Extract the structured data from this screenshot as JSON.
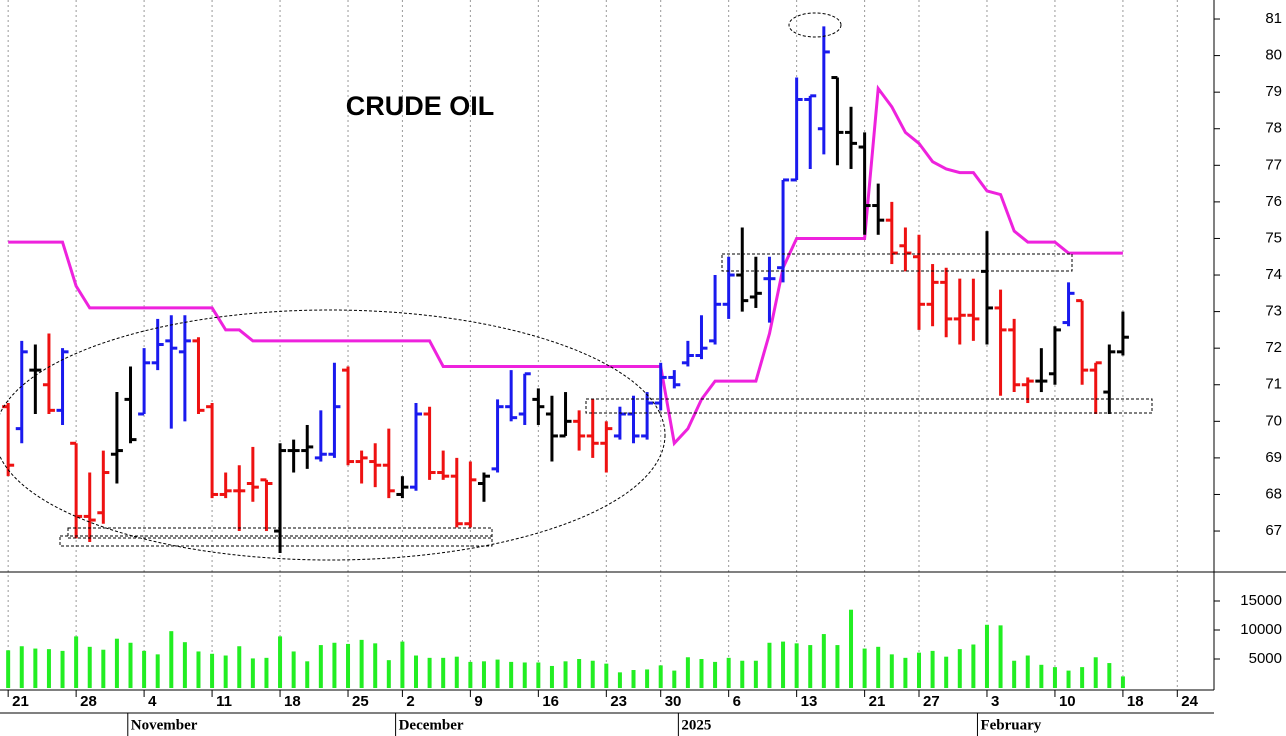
{
  "chart_data": {
    "type": "ohlc",
    "title": "CRUDE OIL",
    "x": [
      0,
      1,
      2,
      3,
      4,
      5,
      6,
      7,
      8,
      9,
      10,
      11,
      12,
      13,
      14,
      15,
      16,
      17,
      18,
      19,
      20,
      21,
      22,
      23,
      24,
      25,
      26,
      27,
      28,
      29,
      30,
      31,
      32,
      33,
      34,
      35,
      36,
      37,
      38,
      39,
      40,
      41,
      42,
      43,
      44,
      45,
      46,
      47,
      48,
      49,
      50,
      51,
      52,
      53,
      54,
      55,
      56,
      57,
      58,
      59,
      60,
      61,
      62,
      63,
      64,
      65,
      66,
      67,
      68,
      69,
      70,
      71,
      72,
      73,
      74,
      75,
      76,
      77,
      78,
      79,
      80,
      81,
      82
    ],
    "open": [
      70.4,
      69.8,
      71.4,
      71.0,
      70.3,
      69.4,
      67.4,
      67.5,
      69.1,
      70.6,
      70.2,
      71.6,
      72.2,
      71.9,
      72.2,
      70.4,
      68.0,
      68.1,
      68.3,
      68.4,
      67.0,
      69.2,
      69.2,
      69.0,
      69.1,
      71.4,
      68.9,
      68.9,
      68.8,
      68.0,
      68.2,
      70.2,
      68.6,
      68.5,
      67.2,
      68.3,
      68.7,
      70.4,
      70.2,
      70.6,
      70.2,
      69.6,
      70.0,
      69.6,
      69.4,
      69.6,
      70.2,
      69.6,
      70.5,
      71.2,
      71.6,
      71.8,
      72.2,
      73.2,
      74.0,
      73.4,
      73.9,
      74.2,
      76.6,
      78.8,
      78.0,
      79.4,
      77.9,
      77.5,
      75.9,
      75.5,
      74.8,
      74.5,
      73.2,
      73.8,
      72.8,
      72.9,
      74.1,
      73.1,
      72.5,
      71.0,
      71.1,
      71.3,
      72.7,
      73.3,
      71.4,
      70.8,
      71.9
    ],
    "high": [
      70.5,
      72.2,
      72.1,
      72.4,
      72.0,
      69.4,
      68.6,
      69.2,
      70.8,
      71.5,
      72.0,
      72.8,
      72.9,
      72.9,
      72.3,
      70.5,
      68.6,
      68.8,
      69.3,
      68.4,
      69.4,
      69.5,
      69.9,
      70.3,
      71.6,
      71.5,
      69.2,
      69.4,
      69.8,
      68.5,
      70.5,
      70.4,
      69.2,
      69.0,
      68.9,
      68.6,
      70.6,
      71.4,
      71.3,
      70.9,
      70.7,
      70.8,
      70.3,
      70.6,
      70.0,
      70.4,
      70.7,
      70.8,
      71.6,
      71.4,
      72.2,
      72.9,
      74.0,
      74.5,
      75.3,
      74.5,
      74.5,
      76.6,
      79.4,
      78.9,
      80.8,
      79.4,
      78.6,
      77.9,
      76.5,
      76.0,
      75.3,
      75.1,
      74.3,
      74.2,
      73.9,
      73.9,
      75.2,
      73.6,
      72.8,
      71.2,
      72.0,
      72.6,
      73.8,
      73.3,
      71.6,
      72.1,
      73.0
    ],
    "low": [
      68.5,
      69.4,
      70.2,
      70.2,
      69.9,
      66.8,
      66.7,
      67.2,
      68.3,
      69.4,
      70.2,
      71.4,
      69.8,
      70.0,
      70.2,
      67.9,
      67.9,
      67.0,
      67.8,
      67.0,
      66.4,
      68.6,
      68.7,
      68.9,
      69.0,
      68.8,
      68.3,
      68.2,
      67.9,
      67.9,
      68.1,
      68.4,
      68.4,
      67.1,
      67.1,
      67.8,
      68.6,
      70.0,
      69.9,
      69.9,
      68.9,
      69.6,
      69.2,
      69.0,
      68.6,
      69.5,
      69.4,
      69.5,
      70.3,
      70.9,
      71.5,
      71.7,
      72.1,
      72.8,
      73.0,
      73.1,
      72.7,
      73.8,
      76.6,
      76.9,
      77.3,
      77.0,
      76.9,
      75.1,
      75.1,
      74.3,
      74.1,
      72.5,
      72.6,
      72.3,
      72.1,
      72.2,
      72.1,
      70.7,
      70.8,
      70.5,
      70.8,
      71.0,
      72.6,
      71.0,
      70.2,
      70.2,
      71.8
    ],
    "close": [
      68.8,
      71.9,
      71.4,
      70.3,
      71.9,
      67.4,
      67.3,
      68.6,
      69.2,
      69.5,
      71.6,
      72.1,
      72.0,
      72.2,
      70.3,
      68.0,
      68.1,
      68.1,
      68.2,
      68.3,
      69.2,
      69.2,
      69.3,
      69.1,
      70.4,
      68.9,
      69.0,
      68.8,
      68.1,
      68.2,
      70.2,
      68.6,
      68.5,
      67.2,
      68.4,
      68.5,
      70.4,
      70.1,
      71.3,
      70.4,
      69.6,
      70.0,
      69.6,
      69.4,
      69.8,
      70.2,
      69.6,
      70.5,
      71.2,
      71.0,
      71.8,
      72.0,
      73.2,
      74.0,
      73.3,
      73.5,
      73.9,
      76.6,
      78.8,
      78.9,
      80.1,
      77.9,
      77.6,
      75.9,
      75.5,
      74.6,
      74.6,
      73.2,
      73.8,
      72.8,
      72.9,
      72.8,
      73.1,
      72.5,
      71.0,
      71.1,
      71.1,
      72.5,
      73.5,
      71.4,
      71.6,
      71.9,
      72.3
    ],
    "colors": [
      "#ee1111",
      "#1a1aee",
      "#000000",
      "#ee1111",
      "#1a1aee",
      "#ee1111",
      "#ee1111",
      "#ee1111",
      "#000000",
      "#000000",
      "#1a1aee",
      "#1a1aee",
      "#1a1aee",
      "#1a1aee",
      "#ee1111",
      "#ee1111",
      "#ee1111",
      "#ee1111",
      "#ee1111",
      "#ee1111",
      "#000000",
      "#000000",
      "#000000",
      "#1a1aee",
      "#1a1aee",
      "#ee1111",
      "#ee1111",
      "#ee1111",
      "#ee1111",
      "#000000",
      "#1a1aee",
      "#ee1111",
      "#ee1111",
      "#ee1111",
      "#ee1111",
      "#000000",
      "#1a1aee",
      "#1a1aee",
      "#1a1aee",
      "#000000",
      "#000000",
      "#000000",
      "#ee1111",
      "#ee1111",
      "#ee1111",
      "#1a1aee",
      "#1a1aee",
      "#1a1aee",
      "#1a1aee",
      "#1a1aee",
      "#1a1aee",
      "#1a1aee",
      "#1a1aee",
      "#1a1aee",
      "#000000",
      "#000000",
      "#1a1aee",
      "#1a1aee",
      "#1a1aee",
      "#1a1aee",
      "#1a1aee",
      "#000000",
      "#000000",
      "#000000",
      "#000000",
      "#ee1111",
      "#ee1111",
      "#ee1111",
      "#ee1111",
      "#ee1111",
      "#ee1111",
      "#ee1111",
      "#000000",
      "#ee1111",
      "#ee1111",
      "#ee1111",
      "#000000",
      "#000000",
      "#1a1aee",
      "#ee1111",
      "#ee1111",
      "#000000",
      "#000000"
    ],
    "xlim": [
      -0.6,
      88.7
    ],
    "ylim": [
      65.88,
      81.52
    ],
    "yticks": [
      67,
      68,
      69,
      70,
      71,
      72,
      73,
      74,
      75,
      76,
      77,
      78,
      79,
      80,
      81
    ],
    "xticks": [
      {
        "value": 0,
        "label": "21"
      },
      {
        "value": 5,
        "label": "28"
      },
      {
        "value": 10,
        "label": "4"
      },
      {
        "value": 15,
        "label": "11"
      },
      {
        "value": 20,
        "label": "18"
      },
      {
        "value": 25,
        "label": "25"
      },
      {
        "value": 29,
        "label": "2"
      },
      {
        "value": 34,
        "label": "9"
      },
      {
        "value": 39,
        "label": "16"
      },
      {
        "value": 44,
        "label": "23"
      },
      {
        "value": 48,
        "label": "30"
      },
      {
        "value": 53,
        "label": "6"
      },
      {
        "value": 58,
        "label": "13"
      },
      {
        "value": 63,
        "label": "21"
      },
      {
        "value": 67,
        "label": "27"
      },
      {
        "value": 72,
        "label": "3"
      },
      {
        "value": 77,
        "label": "10"
      },
      {
        "value": 82,
        "label": "18"
      },
      {
        "value": 86,
        "label": "24"
      }
    ],
    "months": [
      {
        "value": 8.8,
        "label": "November"
      },
      {
        "value": 28.5,
        "label": "December"
      },
      {
        "value": 49.3,
        "label": "2025"
      },
      {
        "value": 71.3,
        "label": "February"
      }
    ],
    "grid": true,
    "overlay": {
      "color": "#ee22dd",
      "values": [
        74.9,
        74.9,
        74.9,
        74.9,
        74.9,
        73.7,
        73.1,
        73.1,
        73.1,
        73.1,
        73.1,
        73.1,
        73.1,
        73.1,
        73.1,
        73.1,
        72.5,
        72.5,
        72.2,
        72.2,
        72.2,
        72.2,
        72.2,
        72.2,
        72.2,
        72.2,
        72.2,
        72.2,
        72.2,
        72.2,
        72.2,
        72.2,
        71.5,
        71.5,
        71.5,
        71.5,
        71.5,
        71.5,
        71.5,
        71.5,
        71.5,
        71.5,
        71.5,
        71.5,
        71.5,
        71.5,
        71.5,
        71.5,
        71.5,
        69.4,
        69.8,
        70.6,
        71.1,
        71.1,
        71.1,
        71.1,
        72.4,
        74.2,
        75.0,
        75.0,
        75.0,
        75.0,
        75.0,
        75.0,
        79.1,
        78.6,
        77.9,
        77.6,
        77.1,
        76.9,
        76.8,
        76.8,
        76.3,
        76.2,
        75.2,
        74.9,
        74.9,
        74.9,
        74.6,
        74.6,
        74.6,
        74.6,
        74.6
      ]
    },
    "volume": {
      "color": "#22ee22",
      "values": [
        6500,
        7200,
        6800,
        6700,
        6400,
        8900,
        7100,
        6600,
        8500,
        7800,
        6400,
        5800,
        9800,
        7900,
        6300,
        5900,
        5600,
        7200,
        5100,
        5200,
        8900,
        6300,
        4600,
        7400,
        7800,
        7600,
        8300,
        7700,
        4800,
        8000,
        5600,
        5200,
        5200,
        5400,
        4500,
        4600,
        4900,
        4500,
        4400,
        4400,
        3800,
        4600,
        5000,
        4700,
        4200,
        2700,
        3100,
        3200,
        3900,
        3000,
        5300,
        5000,
        4500,
        5200,
        4700,
        4700,
        7800,
        8000,
        7700,
        7400,
        9300,
        7400,
        13500,
        6800,
        7100,
        5800,
        5200,
        6100,
        6400,
        5400,
        6700,
        7500,
        10900,
        10800,
        4700,
        5600,
        4000,
        3600,
        3000,
        3600,
        5300,
        4300,
        2000
      ],
      "ylim": [
        0,
        20000
      ],
      "yticks": [
        5000,
        10000,
        15000
      ]
    }
  }
}
